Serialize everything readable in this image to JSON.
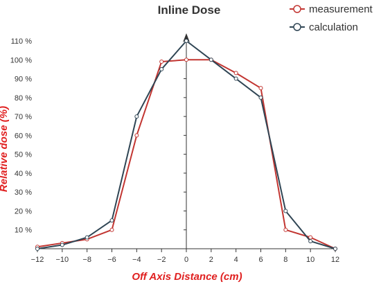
{
  "chart_data": {
    "type": "line",
    "title": "Inline Dose",
    "xlabel": "Off Axis Distance (cm)",
    "ylabel": "Relative dose (%)",
    "xlim": [
      -12,
      12
    ],
    "ylim": [
      0,
      110
    ],
    "x_ticks": [
      -12,
      -10,
      -8,
      -6,
      -4,
      -2,
      0,
      2,
      4,
      6,
      8,
      10,
      12
    ],
    "y_ticks": [
      10,
      20,
      30,
      40,
      50,
      60,
      70,
      80,
      90,
      100,
      110
    ],
    "y_tick_labels": [
      "10 %",
      "20 %",
      "30 %",
      "40 %",
      "50 %",
      "60 %",
      "70 %",
      "80 %",
      "90 %",
      "100 %",
      "110 %"
    ],
    "x": [
      -12,
      -10,
      -8,
      -6,
      -4,
      -2,
      0,
      2,
      4,
      6,
      8,
      10,
      12
    ],
    "series": [
      {
        "name": "measurement",
        "color": "#c23531",
        "values": [
          1,
          3,
          5,
          10,
          60,
          99,
          100,
          100,
          93,
          85,
          10,
          6,
          0
        ]
      },
      {
        "name": "calculation",
        "color": "#2f4554",
        "values": [
          0,
          2,
          6,
          15,
          70,
          95,
          110,
          100,
          90,
          80,
          20,
          4,
          0
        ]
      }
    ],
    "grid": false,
    "legend_position": "top-right"
  }
}
